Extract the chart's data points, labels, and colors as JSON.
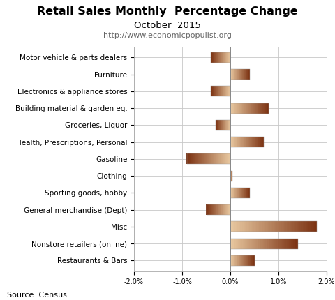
{
  "title": "Retail Sales Monthly  Percentage Change",
  "subtitle": "October  2015",
  "url": "http://www.economicpopulist.org",
  "source": "Source: Census",
  "categories": [
    "Motor vehicle & parts dealers",
    "Furniture",
    "Electronics & appliance stores",
    "Building material & garden eq.",
    "Groceries, Liquor",
    "Health, Prescriptions, Personal",
    "Gasoline",
    "Clothing",
    "Sporting goods, hobby",
    "General merchandise (Dept)",
    "Misc",
    "Nonstore retailers (online)",
    "Restaurants & Bars"
  ],
  "values": [
    -0.4,
    0.4,
    -0.4,
    0.8,
    -0.3,
    0.7,
    -0.9,
    0.05,
    0.4,
    -0.5,
    1.8,
    1.4,
    0.5
  ],
  "xlim": [
    -2.0,
    2.0
  ],
  "xticks": [
    -2.0,
    -1.0,
    0.0,
    1.0,
    2.0
  ],
  "xticklabels": [
    "-2.0%",
    "-1.0%",
    "0.0%",
    "1.0%",
    "2.0%"
  ],
  "background_color": "#ffffff",
  "grid_color": "#c8c8c8",
  "title_fontsize": 11.5,
  "subtitle_fontsize": 9.5,
  "url_fontsize": 8,
  "label_fontsize": 7.5,
  "tick_fontsize": 7,
  "source_fontsize": 8
}
